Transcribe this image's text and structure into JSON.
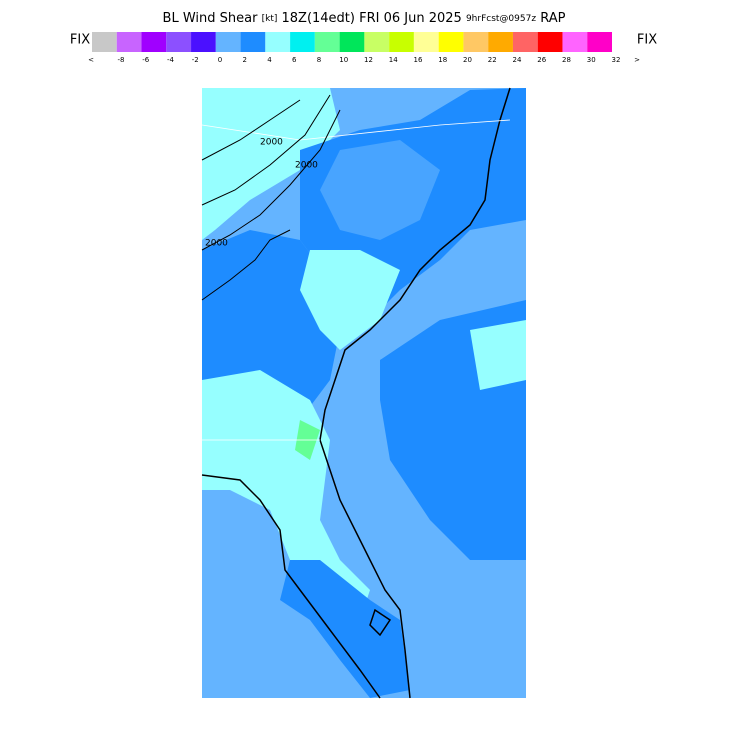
{
  "header": {
    "title_parts": [
      "BL Wind Shear",
      "[kt]",
      "18Z(14edt)",
      "FRI 06 Jun 2025",
      "9hrFcst@0957z",
      "RAP"
    ],
    "left_label": "FIX",
    "right_label": "FIX"
  },
  "colorbar": {
    "colors": [
      "#c8c8c8",
      "#c864ff",
      "#a000ff",
      "#8c50ff",
      "#4b10ff",
      "#64b4ff",
      "#1e8cff",
      "#96ffff",
      "#00f0f0",
      "#64ff96",
      "#00e65a",
      "#c8ff64",
      "#c8ff00",
      "#ffff96",
      "#ffff00",
      "#ffc864",
      "#ffaa00",
      "#ff6464",
      "#ff0000",
      "#ff64ff",
      "#ff00c8"
    ],
    "labels": [
      "<",
      "-8",
      "-6",
      "-4",
      "-2",
      "0",
      "2",
      "4",
      "6",
      "8",
      "10",
      "12",
      "14",
      "16",
      "18",
      "20",
      "22",
      "24",
      "26",
      "28",
      "30",
      "32",
      ">"
    ]
  },
  "map": {
    "contour_labels": [
      "2000",
      "2000",
      "2000"
    ]
  }
}
